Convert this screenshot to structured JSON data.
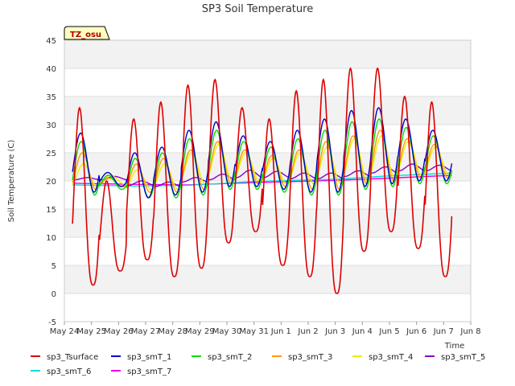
{
  "chart_data": {
    "type": "line",
    "title": "SP3 Soil Temperature",
    "xlabel": "Time",
    "ylabel": "Soil Temperature (C)",
    "ylim": [
      -5,
      45
    ],
    "yticks": [
      -5,
      0,
      5,
      10,
      15,
      20,
      25,
      30,
      35,
      40,
      45
    ],
    "xlim": [
      0,
      15
    ],
    "x_units": "days since May 24",
    "xtick_labels": [
      "May 24",
      "May 25",
      "May 26",
      "May 27",
      "May 28",
      "May 29",
      "May 30",
      "May 31",
      "Jun 1",
      "Jun 2",
      "Jun 3",
      "Jun 4",
      "Jun 5",
      "Jun 6",
      "Jun 7",
      "Jun 8"
    ],
    "x_start": 0.3,
    "x_end": 14.3,
    "annotation": "TZ_osu",
    "grid": true,
    "legend_position": "bottom",
    "series": [
      {
        "name": "sp3_Tsurface",
        "color": "#dd0000",
        "means": [
          14,
          14,
          14,
          15,
          16,
          18,
          19,
          17,
          16,
          18,
          21,
          23,
          20,
          18
        ],
        "maxs": [
          33,
          20,
          31,
          34,
          37,
          38,
          33,
          31,
          36,
          38,
          40,
          40,
          35,
          34
        ],
        "mins": [
          1.5,
          4,
          6,
          3,
          4.5,
          9,
          11,
          5,
          3,
          0,
          7.5,
          11,
          8,
          3
        ]
      },
      {
        "name": "sp3_smT_1",
        "color": "#0000cc",
        "maxs": [
          28.5,
          21.5,
          25,
          26,
          29,
          30.5,
          28,
          27,
          29,
          31,
          32.5,
          33,
          31,
          29
        ],
        "mins": [
          18,
          19,
          17,
          17.5,
          18,
          19,
          19,
          18.5,
          18,
          18,
          19,
          19.5,
          20,
          20
        ]
      },
      {
        "name": "sp3_smT_2",
        "color": "#00dd00",
        "maxs": [
          27,
          21,
          24,
          25,
          27.5,
          29,
          27,
          26,
          27.5,
          29,
          30.5,
          31,
          29.5,
          28
        ],
        "mins": [
          17.5,
          18.5,
          17,
          17,
          17.5,
          18.5,
          18.5,
          18,
          17.5,
          17.5,
          18.5,
          19,
          19.5,
          19.5
        ]
      },
      {
        "name": "sp3_smT_3",
        "color": "#ff9900",
        "maxs": [
          25,
          20.5,
          23,
          24,
          25.5,
          27,
          25.5,
          24.5,
          25.5,
          27,
          28,
          29,
          27.5,
          26.5
        ],
        "mins": [
          18.5,
          19,
          18,
          18,
          18.5,
          19.5,
          19.5,
          19,
          18.5,
          18.5,
          19.5,
          20,
          20.5,
          20.5
        ]
      },
      {
        "name": "sp3_smT_4",
        "color": "#eeee00",
        "maxs": [
          23,
          21,
          22,
          23,
          25,
          26.5,
          25,
          24,
          25,
          26,
          27.5,
          28,
          27,
          26
        ],
        "mins": [
          19,
          19.5,
          18.5,
          18.5,
          19.5,
          20,
          20,
          19.5,
          19.5,
          19.5,
          20,
          20.5,
          21,
          21
        ]
      },
      {
        "name": "sp3_smT_5",
        "color": "#8800cc",
        "maxs": [
          20.6,
          20.8,
          20,
          19.8,
          20.6,
          21.2,
          21.9,
          21.7,
          21.4,
          21.4,
          21.8,
          22.5,
          23,
          22.8
        ],
        "mins": [
          20.2,
          20.2,
          19.2,
          19,
          19.8,
          20.2,
          20.6,
          20.6,
          20.4,
          20.4,
          20.8,
          21.4,
          21.8,
          21.8
        ]
      },
      {
        "name": "sp3_smT_6",
        "color": "#00dddd",
        "points": [
          [
            0.3,
            19.3
          ],
          [
            2.5,
            19.1
          ],
          [
            4.5,
            19.2
          ],
          [
            7,
            19.9
          ],
          [
            10,
            20.3
          ],
          [
            12,
            20.9
          ],
          [
            14.3,
            21.4
          ]
        ]
      },
      {
        "name": "sp3_smT_7",
        "color": "#ee00ee",
        "points": [
          [
            0.3,
            19.6
          ],
          [
            2.5,
            19.4
          ],
          [
            4.5,
            19.3
          ],
          [
            7,
            19.7
          ],
          [
            10,
            20.1
          ],
          [
            12,
            20.5
          ],
          [
            14.3,
            21.0
          ]
        ]
      }
    ]
  }
}
